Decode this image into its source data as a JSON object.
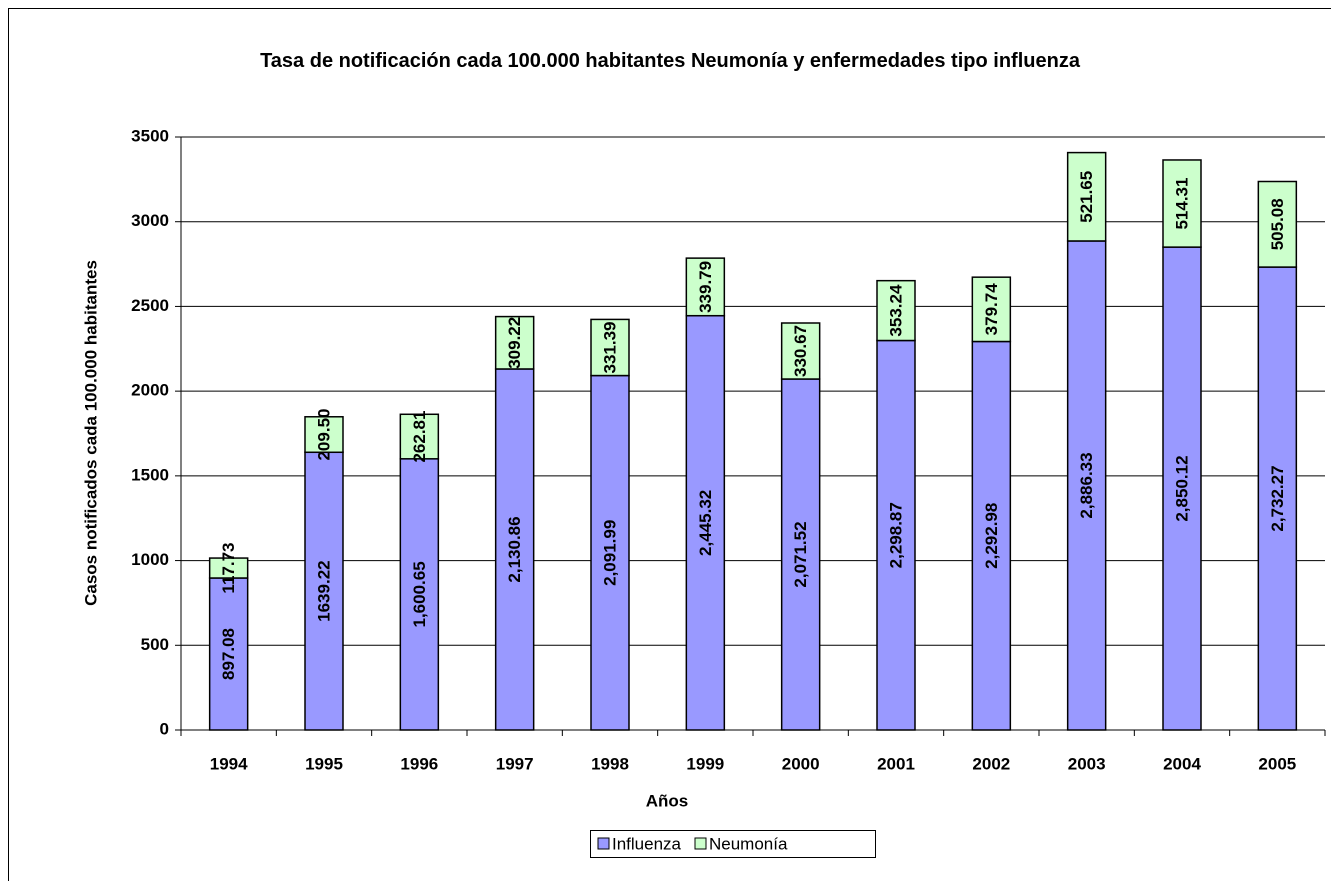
{
  "chart_data": {
    "type": "stacked_bar",
    "title": "Tasa de notificación cada 100.000 habitantes Neumonía y enfermedades tipo influenza",
    "xlabel": "Años",
    "ylabel": "Casos notificados cada 100.000 habitantes",
    "categories": [
      "1994",
      "1995",
      "1996",
      "1997",
      "1998",
      "1999",
      "2000",
      "2001",
      "2002",
      "2003",
      "2004",
      "2005"
    ],
    "series": [
      {
        "name": "Influenza",
        "color": "#9999ff",
        "values": [
          897.08,
          1639.22,
          1600.65,
          2130.86,
          2091.99,
          2445.32,
          2071.52,
          2298.87,
          2292.98,
          2886.33,
          2850.12,
          2732.27
        ],
        "value_labels": [
          "897.08",
          "1639.22",
          "1,600.65",
          "2,130.86",
          "2,091.99",
          "2,445.32",
          "2,071.52",
          "2,298.87",
          "2,292.98",
          "2,886.33",
          "2,850.12",
          "2,732.27"
        ]
      },
      {
        "name": "Neumonía",
        "color": "#ccffcc",
        "values": [
          117.73,
          209.5,
          262.81,
          309.22,
          331.39,
          339.79,
          330.67,
          353.24,
          379.74,
          521.65,
          514.31,
          505.08
        ],
        "value_labels": [
          "117.73",
          "209.50",
          "262.81",
          "309.22",
          "331.39",
          "339.79",
          "330.67",
          "353.24",
          "379.74",
          "521.65",
          "514.31",
          "505.08"
        ]
      }
    ],
    "ylim": [
      0,
      3500
    ],
    "yticks": [
      0,
      500,
      1000,
      1500,
      2000,
      2500,
      3000,
      3500
    ],
    "grid": true,
    "legend": "bottom"
  }
}
